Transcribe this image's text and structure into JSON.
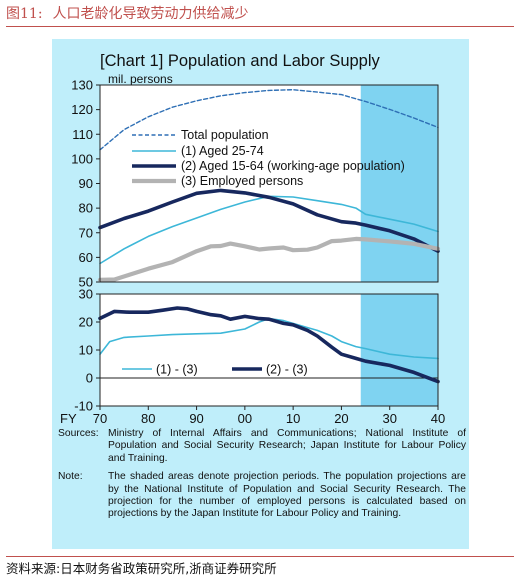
{
  "caption": {
    "number": "图11:",
    "title": "人口老龄化导致劳动力供给减少"
  },
  "footer": {
    "source": "资料来源:日本财务省政策研究所,浙商证券研究所"
  },
  "notes": {
    "sources_key": "Sources:",
    "sources_text": "Ministry of Internal Affairs and Communications; National Institute of Population and Social Security Research; Japan Institute for Labour Policy and Training.",
    "note_key": "Note:",
    "note_text": "The shaded areas denote projection periods. The population projections are by the National Institute of Population and Social Security Research. The projection for the number of employed persons is calculated based on projections by the Japan Institute for Labour Policy and Training."
  },
  "colors": {
    "panel_bg": "#bfeefa",
    "plot_bg": "#ffffff",
    "projection_shade": "#7fd3f1",
    "total": "#2e6fb5",
    "aged_25_74": "#3db7d8",
    "aged_15_64": "#17285e",
    "employed": "#b3b3b3",
    "gap_1_3": "#3db7d8",
    "gap_2_3": "#17285e",
    "caption": "#c0504d"
  },
  "chart_data": [
    {
      "id": "top",
      "type": "line",
      "title": "[Chart 1] Population and Labor Supply",
      "ylabel": "mil. persons",
      "ylim": [
        50,
        130
      ],
      "yticks": [
        50,
        60,
        70,
        80,
        90,
        100,
        110,
        120,
        130
      ],
      "xlim": [
        1970,
        2040
      ],
      "projection_start": 2024,
      "legend_position": "upper-left",
      "series": [
        {
          "key": "total",
          "name": "Total population",
          "style": "dashed",
          "points": [
            [
              1970,
              103.7
            ],
            [
              1975,
              111.9
            ],
            [
              1980,
              117.1
            ],
            [
              1985,
              121.0
            ],
            [
              1990,
              123.6
            ],
            [
              1995,
              125.6
            ],
            [
              2000,
              126.9
            ],
            [
              2005,
              127.8
            ],
            [
              2010,
              128.1
            ],
            [
              2015,
              127.1
            ],
            [
              2020,
              126.1
            ],
            [
              2023,
              124.4
            ],
            [
              2025,
              123.3
            ],
            [
              2030,
              120.1
            ],
            [
              2035,
              116.6
            ],
            [
              2040,
              112.8
            ]
          ]
        },
        {
          "key": "aged_25_74",
          "name": "(1) Aged 25-74",
          "style": "solid",
          "points": [
            [
              1970,
              57.5
            ],
            [
              1975,
              63.5
            ],
            [
              1980,
              68.5
            ],
            [
              1985,
              72.5
            ],
            [
              1990,
              76.0
            ],
            [
              1995,
              79.5
            ],
            [
              2000,
              82.5
            ],
            [
              2005,
              84.8
            ],
            [
              2010,
              84.5
            ],
            [
              2015,
              83.0
            ],
            [
              2020,
              81.5
            ],
            [
              2023,
              80.0
            ],
            [
              2025,
              77.5
            ],
            [
              2030,
              75.5
            ],
            [
              2035,
              73.5
            ],
            [
              2040,
              70.5
            ]
          ]
        },
        {
          "key": "aged_15_64",
          "name": "(2) Aged 15-64 (working-age population)",
          "style": "thick",
          "points": [
            [
              1970,
              72.1
            ],
            [
              1975,
              75.8
            ],
            [
              1980,
              78.8
            ],
            [
              1985,
              82.5
            ],
            [
              1990,
              86.0
            ],
            [
              1995,
              87.2
            ],
            [
              2000,
              86.2
            ],
            [
              2005,
              84.4
            ],
            [
              2010,
              81.7
            ],
            [
              2015,
              77.3
            ],
            [
              2020,
              74.5
            ],
            [
              2023,
              73.9
            ],
            [
              2025,
              73.1
            ],
            [
              2030,
              70.8
            ],
            [
              2035,
              67.5
            ],
            [
              2040,
              62.5
            ]
          ]
        },
        {
          "key": "employed",
          "name": "(3) Employed persons",
          "style": "thick-gray",
          "points": [
            [
              1970,
              50.9
            ],
            [
              1973,
              51.0
            ],
            [
              1976,
              52.9
            ],
            [
              1980,
              55.4
            ],
            [
              1985,
              58.1
            ],
            [
              1990,
              62.5
            ],
            [
              1993,
              64.5
            ],
            [
              1995,
              64.6
            ],
            [
              1997,
              65.6
            ],
            [
              2000,
              64.5
            ],
            [
              2003,
              63.2
            ],
            [
              2005,
              63.6
            ],
            [
              2008,
              64.0
            ],
            [
              2010,
              62.9
            ],
            [
              2013,
              63.1
            ],
            [
              2015,
              64.0
            ],
            [
              2018,
              66.6
            ],
            [
              2020,
              66.8
            ],
            [
              2023,
              67.5
            ],
            [
              2025,
              67.3
            ],
            [
              2030,
              66.5
            ],
            [
              2035,
              65.5
            ],
            [
              2040,
              63.5
            ]
          ]
        }
      ]
    },
    {
      "id": "bottom",
      "type": "line",
      "xlabel": "FY",
      "ylim": [
        -10,
        30
      ],
      "yticks": [
        -10,
        0,
        10,
        20,
        30
      ],
      "xlim": [
        1970,
        2040
      ],
      "xtick_values": [
        1970,
        1980,
        1990,
        2000,
        2010,
        2020,
        2030,
        2040
      ],
      "xtick_labels": [
        "70",
        "80",
        "90",
        "00",
        "10",
        "20",
        "30",
        "40"
      ],
      "projection_start": 2024,
      "legend_position": "lower-left",
      "series": [
        {
          "key": "gap_1_3",
          "name": "(1) - (3)",
          "style": "solid",
          "points": [
            [
              1970,
              8.5
            ],
            [
              1972,
              13.0
            ],
            [
              1975,
              14.5
            ],
            [
              1980,
              15.0
            ],
            [
              1985,
              15.5
            ],
            [
              1990,
              15.8
            ],
            [
              1995,
              16.0
            ],
            [
              2000,
              17.5
            ],
            [
              2003,
              20.0
            ],
            [
              2005,
              21.2
            ],
            [
              2008,
              20.5
            ],
            [
              2010,
              19.5
            ],
            [
              2013,
              18.0
            ],
            [
              2015,
              17.0
            ],
            [
              2018,
              15.0
            ],
            [
              2020,
              13.0
            ],
            [
              2023,
              11.2
            ],
            [
              2025,
              10.5
            ],
            [
              2030,
              8.5
            ],
            [
              2035,
              7.5
            ],
            [
              2040,
              7.0
            ]
          ]
        },
        {
          "key": "gap_2_3",
          "name": "(2) - (3)",
          "style": "thick",
          "points": [
            [
              1970,
              21.3
            ],
            [
              1973,
              23.8
            ],
            [
              1976,
              23.5
            ],
            [
              1980,
              23.5
            ],
            [
              1983,
              24.2
            ],
            [
              1986,
              25.0
            ],
            [
              1988,
              24.7
            ],
            [
              1990,
              23.8
            ],
            [
              1993,
              22.6
            ],
            [
              1995,
              22.2
            ],
            [
              1997,
              21.0
            ],
            [
              2000,
              22.0
            ],
            [
              2003,
              21.2
            ],
            [
              2005,
              21.0
            ],
            [
              2008,
              19.5
            ],
            [
              2010,
              19.0
            ],
            [
              2013,
              17.0
            ],
            [
              2015,
              15.0
            ],
            [
              2018,
              11.0
            ],
            [
              2020,
              8.5
            ],
            [
              2023,
              7.0
            ],
            [
              2025,
              6.0
            ],
            [
              2030,
              4.5
            ],
            [
              2035,
              2.0
            ],
            [
              2040,
              -1.3
            ]
          ]
        }
      ]
    }
  ]
}
